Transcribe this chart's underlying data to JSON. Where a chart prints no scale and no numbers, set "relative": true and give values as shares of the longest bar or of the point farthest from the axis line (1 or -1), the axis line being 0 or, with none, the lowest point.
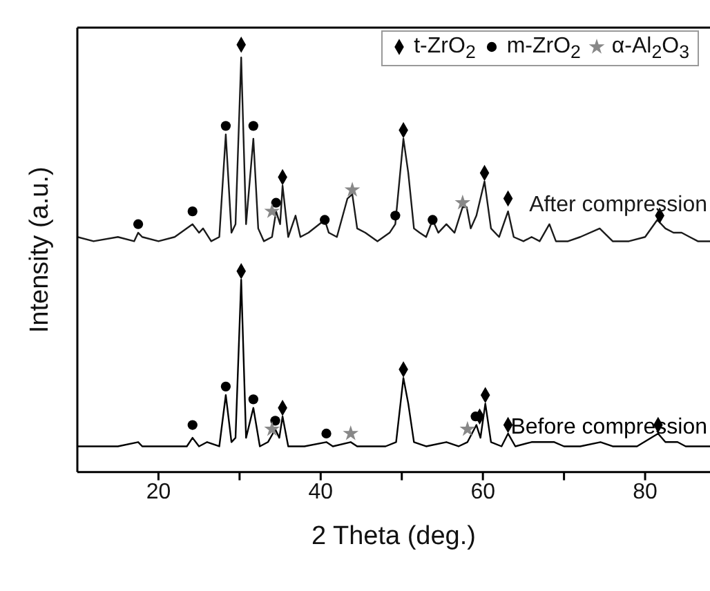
{
  "chart_data": {
    "type": "line",
    "xlabel": "2 Theta (deg.)",
    "ylabel": "Intensity (a.u.)",
    "relative": true,
    "xlim": [
      10,
      88
    ],
    "xticks": [
      20,
      {
        "value": 30,
        "label": null
      },
      40,
      {
        "value": 50,
        "label": null
      },
      60,
      {
        "value": 70,
        "label": null
      },
      80
    ],
    "grid": false,
    "legend": "top right",
    "line_style": "solid",
    "series": [
      {
        "name": "After compression",
        "marker": "none",
        "color": "#1a1a1a",
        "x": [
          10,
          12,
          15,
          17,
          17.5,
          18,
          20,
          22,
          24.2,
          25,
          25.5,
          26.5,
          27.5,
          28.3,
          29,
          29.5,
          30.2,
          30.8,
          31.7,
          32.3,
          33,
          34,
          34.5,
          35,
          35.3,
          36,
          36.9,
          37.5,
          38.5,
          40.5,
          41,
          42,
          43.3,
          43.9,
          44.5,
          45.5,
          47,
          48.5,
          49.2,
          50.2,
          50.8,
          51.5,
          52.2,
          53,
          53.8,
          54.5,
          55.5,
          56.5,
          57.5,
          58,
          58.5,
          59.2,
          60.2,
          61,
          62,
          63.1,
          63.8,
          65,
          66,
          67,
          68.2,
          69,
          70.5,
          72,
          74.4,
          76,
          78,
          80,
          81.5,
          82.5,
          83.5,
          84.5,
          85.5,
          86.5,
          88
        ],
        "values": [
          0.55,
          0.54,
          0.55,
          0.54,
          0.56,
          0.55,
          0.54,
          0.55,
          0.58,
          0.56,
          0.57,
          0.54,
          0.55,
          0.79,
          0.56,
          0.58,
          0.97,
          0.58,
          0.78,
          0.57,
          0.54,
          0.55,
          0.61,
          0.58,
          0.67,
          0.55,
          0.6,
          0.55,
          0.56,
          0.59,
          0.56,
          0.55,
          0.64,
          0.65,
          0.57,
          0.56,
          0.54,
          0.56,
          0.58,
          0.78,
          0.7,
          0.57,
          0.56,
          0.55,
          0.59,
          0.56,
          0.58,
          0.56,
          0.62,
          0.62,
          0.57,
          0.6,
          0.68,
          0.57,
          0.55,
          0.61,
          0.55,
          0.54,
          0.55,
          0.54,
          0.58,
          0.54,
          0.54,
          0.55,
          0.57,
          0.54,
          0.54,
          0.55,
          0.59,
          0.57,
          0.56,
          0.56,
          0.55,
          0.54,
          0.54
        ]
      },
      {
        "name": "Before compression",
        "marker": "none",
        "color": "#000000",
        "x": [
          10,
          13,
          15,
          17.5,
          18,
          20,
          22,
          23.5,
          24.2,
          25,
          26,
          27.5,
          28.3,
          29,
          29.5,
          30.2,
          30.8,
          31.7,
          32.5,
          33.5,
          34.4,
          34.9,
          35.3,
          36,
          38,
          40.7,
          41.5,
          43.7,
          44.5,
          46,
          48,
          49.3,
          50.2,
          50.8,
          51.5,
          53,
          55.5,
          57,
          58.1,
          59.2,
          59.7,
          60.3,
          61,
          62.3,
          63.1,
          64,
          66,
          68.8,
          70,
          72,
          74.5,
          76,
          79,
          81.6,
          82.5,
          84,
          85,
          88
        ],
        "values": [
          0.06,
          0.06,
          0.06,
          0.07,
          0.06,
          0.06,
          0.06,
          0.06,
          0.08,
          0.06,
          0.07,
          0.06,
          0.18,
          0.07,
          0.08,
          0.45,
          0.08,
          0.15,
          0.06,
          0.07,
          0.1,
          0.08,
          0.13,
          0.06,
          0.06,
          0.07,
          0.06,
          0.07,
          0.06,
          0.06,
          0.06,
          0.07,
          0.22,
          0.16,
          0.07,
          0.06,
          0.07,
          0.06,
          0.07,
          0.11,
          0.08,
          0.16,
          0.07,
          0.06,
          0.09,
          0.06,
          0.07,
          0.07,
          0.06,
          0.06,
          0.07,
          0.06,
          0.06,
          0.09,
          0.07,
          0.07,
          0.06,
          0.06
        ]
      },
      {
        "name": "t-ZrO$_{2}$",
        "type": "scatter",
        "marker": "diamond",
        "color": "#000000",
        "x": [
          30.2,
          35.3,
          50.2,
          60.2,
          63.1,
          81.8,
          30.2,
          35.3,
          50.2,
          59.6,
          60.3,
          63.1,
          81.6
        ],
        "values": [
          1.0,
          0.69,
          0.8,
          0.7,
          0.64,
          0.6,
          0.47,
          0.15,
          0.24,
          0.13,
          0.18,
          0.11,
          0.11
        ]
      },
      {
        "name": "m-ZrO$_{2}$",
        "type": "scatter",
        "marker": "circle",
        "color": "#000000",
        "x": [
          17.5,
          24.2,
          28.3,
          31.7,
          34.5,
          40.5,
          49.2,
          53.8,
          24.2,
          28.3,
          31.7,
          34.4,
          40.7,
          59.1
        ],
        "values": [
          0.58,
          0.61,
          0.81,
          0.81,
          0.63,
          0.59,
          0.6,
          0.59,
          0.11,
          0.2,
          0.17,
          0.12,
          0.09,
          0.13
        ]
      },
      {
        "name": "α-Al$_{2}$O$_{3}$",
        "type": "scatter",
        "marker": "star",
        "color": "#888888",
        "x": [
          34.0,
          43.9,
          57.5,
          34.0,
          43.7,
          58.1
        ],
        "values": [
          0.61,
          0.66,
          0.63,
          0.1,
          0.09,
          0.1
        ]
      }
    ]
  }
}
